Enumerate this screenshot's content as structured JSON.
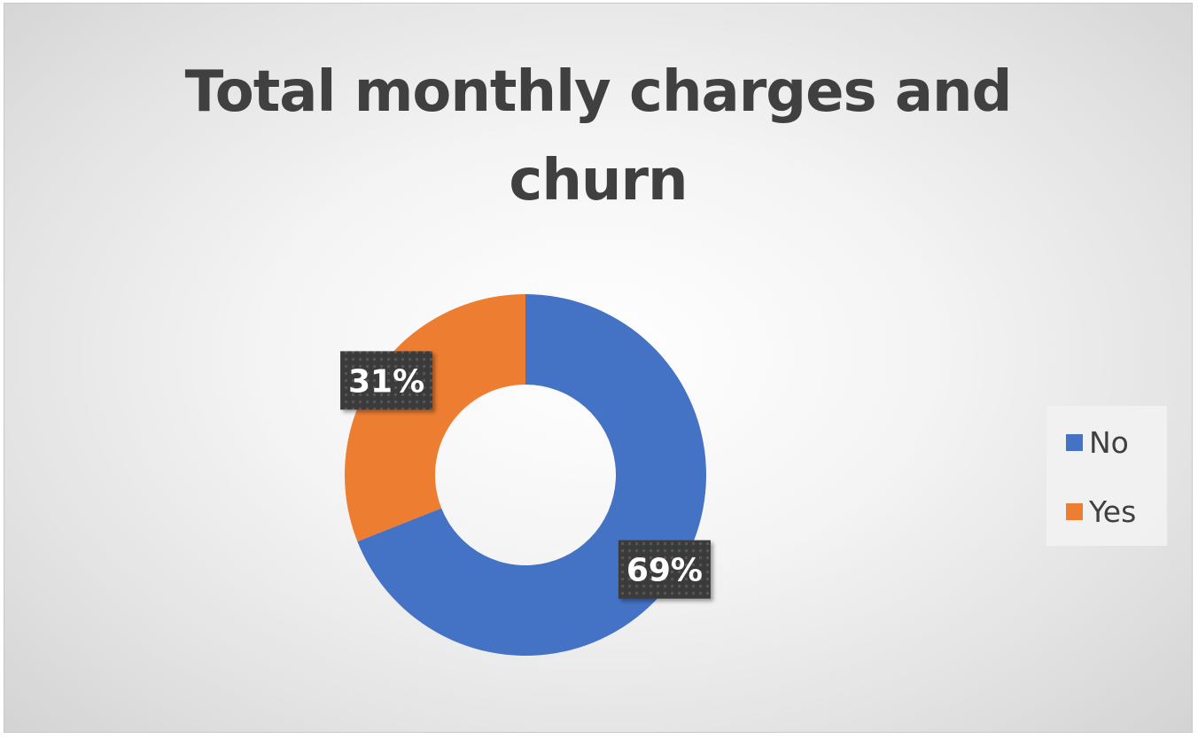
{
  "chart_data": {
    "type": "pie",
    "title": "Total monthly charges and churn",
    "title_lines": [
      "Total monthly charges and",
      "churn"
    ],
    "donut": true,
    "categories": [
      "No",
      "Yes"
    ],
    "values": [
      69,
      31
    ],
    "data_labels": [
      "69%",
      "31%"
    ],
    "colors": [
      "#4472C4",
      "#ED7D31"
    ],
    "legend_position": "right",
    "legend": [
      "No",
      "Yes"
    ]
  }
}
